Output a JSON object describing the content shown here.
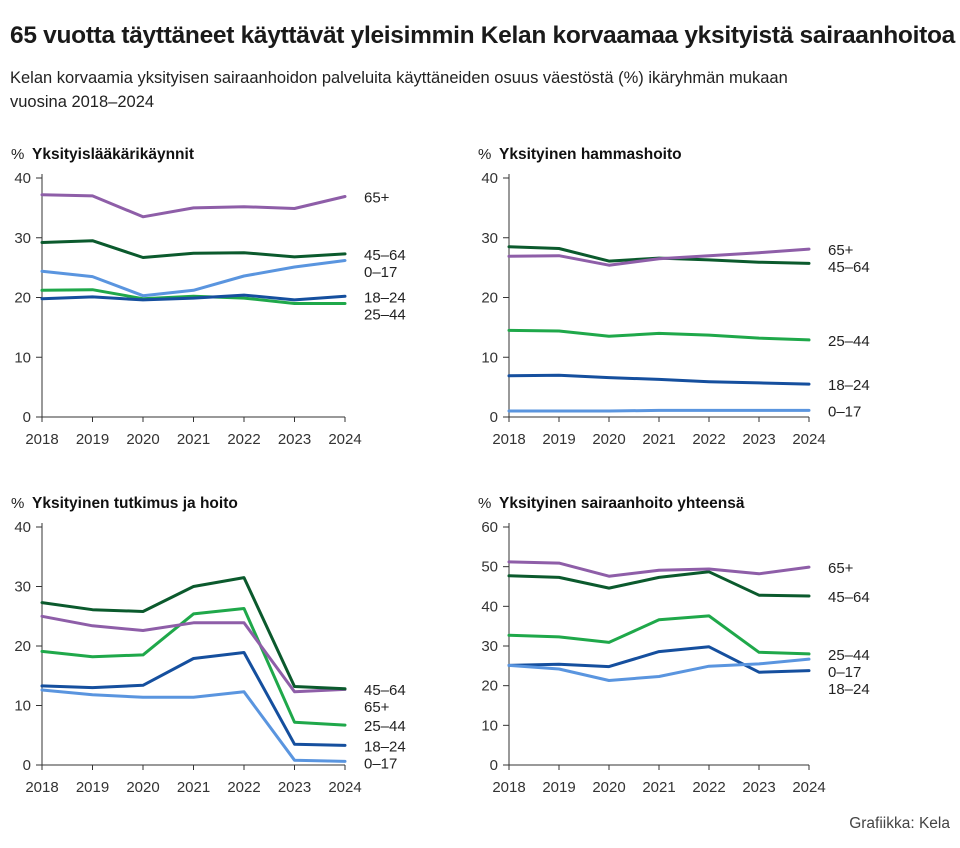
{
  "title": "65 vuotta täyttäneet käyttävät yleisimmin Kelan korvaamaa yksityistä sairaanhoitoa",
  "subtitle": "Kelan korvaamia yksityisen sairaanhoidon palveluita käyttäneiden osuus väestöstä (%) ikäryhmän mukaan vuosina 2018–2024",
  "source": "Grafiikka: Kela",
  "unit_label": "%",
  "colors": {
    "65+": "#8e5ea8",
    "45–64": "#0b5a2d",
    "0–17": "#5a95df",
    "18–24": "#154f9e",
    "25–44": "#1fa84a"
  },
  "chart_data": [
    {
      "type": "line",
      "title": "Yksityislääkärikäynnit",
      "x": [
        "2018",
        "2019",
        "2020",
        "2021",
        "2022",
        "2023",
        "2024"
      ],
      "ylim": [
        0,
        40
      ],
      "yticks": [
        0,
        10,
        20,
        30,
        40
      ],
      "grid": false,
      "legend": "direct labels at line ends (right)",
      "series": [
        {
          "name": "65+",
          "values": [
            37.2,
            37.0,
            33.5,
            35.0,
            35.2,
            34.9,
            36.9
          ]
        },
        {
          "name": "45–64",
          "values": [
            29.2,
            29.5,
            26.7,
            27.4,
            27.5,
            26.8,
            27.3
          ]
        },
        {
          "name": "0–17",
          "values": [
            24.4,
            23.5,
            20.3,
            21.2,
            23.6,
            25.1,
            26.2
          ]
        },
        {
          "name": "18–24",
          "values": [
            19.8,
            20.1,
            19.6,
            19.9,
            20.4,
            19.6,
            20.2
          ]
        },
        {
          "name": "25–44",
          "values": [
            21.2,
            21.3,
            19.8,
            20.2,
            19.9,
            19.0,
            19.0
          ]
        }
      ]
    },
    {
      "type": "line",
      "title": "Yksityinen hammashoito",
      "x": [
        "2018",
        "2019",
        "2020",
        "2021",
        "2022",
        "2023",
        "2024"
      ],
      "ylim": [
        0,
        40
      ],
      "yticks": [
        0,
        10,
        20,
        30,
        40
      ],
      "grid": false,
      "legend": "direct labels at line ends (right)",
      "series": [
        {
          "name": "65+",
          "values": [
            26.9,
            27.0,
            25.4,
            26.5,
            27.0,
            27.5,
            28.1
          ]
        },
        {
          "name": "45–64",
          "values": [
            28.5,
            28.2,
            26.1,
            26.6,
            26.3,
            25.9,
            25.7
          ]
        },
        {
          "name": "25–44",
          "values": [
            14.5,
            14.4,
            13.5,
            14.0,
            13.7,
            13.2,
            12.9
          ]
        },
        {
          "name": "18–24",
          "values": [
            6.9,
            7.0,
            6.6,
            6.3,
            5.9,
            5.7,
            5.5
          ]
        },
        {
          "name": "0–17",
          "values": [
            1.0,
            1.0,
            1.0,
            1.1,
            1.1,
            1.1,
            1.1
          ]
        }
      ]
    },
    {
      "type": "line",
      "title": "Yksityinen tutkimus ja hoito",
      "x": [
        "2018",
        "2019",
        "2020",
        "2021",
        "2022",
        "2023",
        "2024"
      ],
      "ylim": [
        0,
        40
      ],
      "yticks": [
        0,
        10,
        20,
        30,
        40
      ],
      "grid": false,
      "legend": "direct labels at line ends (right)",
      "series": [
        {
          "name": "45–64",
          "values": [
            27.3,
            26.1,
            25.8,
            30.0,
            31.5,
            13.2,
            12.8
          ]
        },
        {
          "name": "65+",
          "values": [
            25.0,
            23.4,
            22.6,
            23.9,
            23.9,
            12.3,
            12.7
          ]
        },
        {
          "name": "25–44",
          "values": [
            19.1,
            18.2,
            18.5,
            25.4,
            26.3,
            7.2,
            6.7
          ]
        },
        {
          "name": "18–24",
          "values": [
            13.3,
            13.0,
            13.4,
            17.9,
            18.9,
            3.5,
            3.3
          ]
        },
        {
          "name": "0–17",
          "values": [
            12.6,
            11.8,
            11.4,
            11.4,
            12.3,
            0.8,
            0.6
          ]
        }
      ]
    },
    {
      "type": "line",
      "title": "Yksityinen sairaanhoito yhteensä",
      "x": [
        "2018",
        "2019",
        "2020",
        "2021",
        "2022",
        "2023",
        "2024"
      ],
      "ylim": [
        0,
        60
      ],
      "yticks": [
        0,
        10,
        20,
        30,
        40,
        50,
        60
      ],
      "grid": false,
      "legend": "direct labels at line ends (right)",
      "series": [
        {
          "name": "65+",
          "values": [
            51.2,
            50.9,
            47.6,
            49.1,
            49.4,
            48.2,
            49.9
          ]
        },
        {
          "name": "45–64",
          "values": [
            47.7,
            47.3,
            44.6,
            47.3,
            48.7,
            42.8,
            42.6
          ]
        },
        {
          "name": "25–44",
          "values": [
            32.7,
            32.3,
            30.9,
            36.6,
            37.6,
            28.4,
            28.0
          ]
        },
        {
          "name": "0–17",
          "values": [
            25.1,
            24.2,
            21.3,
            22.3,
            24.9,
            25.5,
            26.7
          ]
        },
        {
          "name": "18–24",
          "values": [
            25.1,
            25.4,
            24.8,
            28.6,
            29.8,
            23.4,
            23.8
          ]
        }
      ]
    }
  ]
}
